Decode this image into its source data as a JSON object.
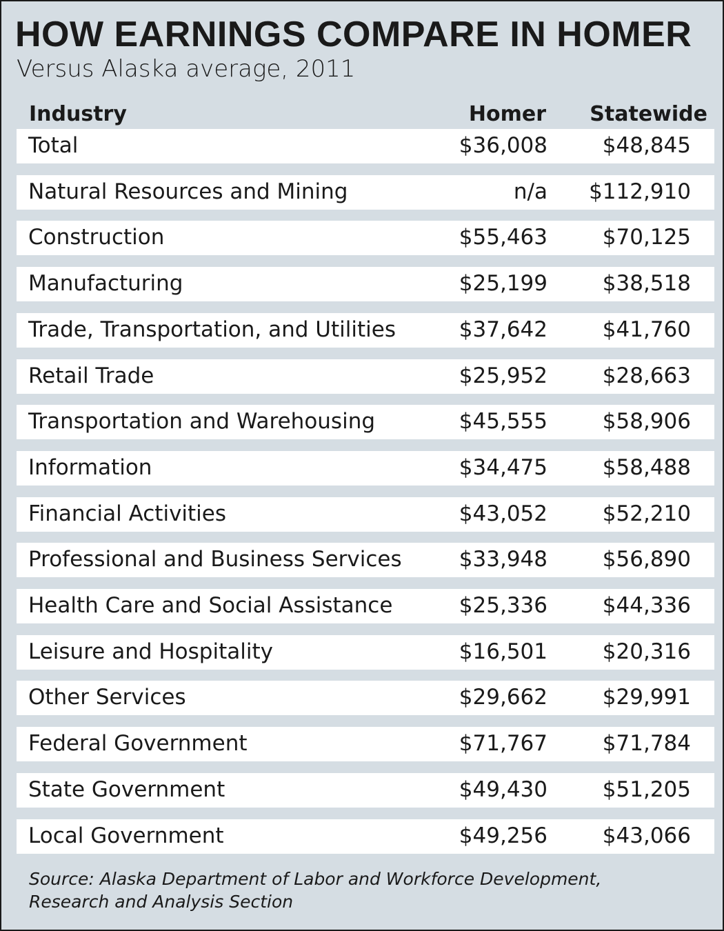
{
  "header": {
    "title": "HOW EARNINGS COMPARE IN HOMER",
    "subtitle": "Versus Alaska average, 2011"
  },
  "table": {
    "columns": [
      "Industry",
      "Homer",
      "Statewide"
    ],
    "rows": [
      [
        "Total",
        "$36,008",
        "$48,845"
      ],
      [
        "Natural Resources and Mining",
        "n/a",
        "$112,910"
      ],
      [
        "Construction",
        "$55,463",
        "$70,125"
      ],
      [
        "Manufacturing",
        "$25,199",
        "$38,518"
      ],
      [
        "Trade, Transportation, and Utilities",
        "$37,642",
        "$41,760"
      ],
      [
        "Retail Trade",
        "$25,952",
        "$28,663"
      ],
      [
        "Transportation and Warehousing",
        "$45,555",
        "$58,906"
      ],
      [
        "Information",
        "$34,475",
        "$58,488"
      ],
      [
        "Financial Activities",
        "$43,052",
        "$52,210"
      ],
      [
        "Professional and Business Services",
        "$33,948",
        "$56,890"
      ],
      [
        "Health Care and Social Assistance",
        "$25,336",
        "$44,336"
      ],
      [
        "Leisure and Hospitality",
        "$16,501",
        "$20,316"
      ],
      [
        "Other Services",
        "$29,662",
        "$29,991"
      ],
      [
        "Federal Government",
        "$71,767",
        "$71,784"
      ],
      [
        "State Government",
        "$49,430",
        "$51,205"
      ],
      [
        "Local Government",
        "$49,256",
        "$43,066"
      ]
    ]
  },
  "source": [
    "Source: Alaska Department of Labor and  Workforce Development,",
    "Research and Analysis Section"
  ]
}
